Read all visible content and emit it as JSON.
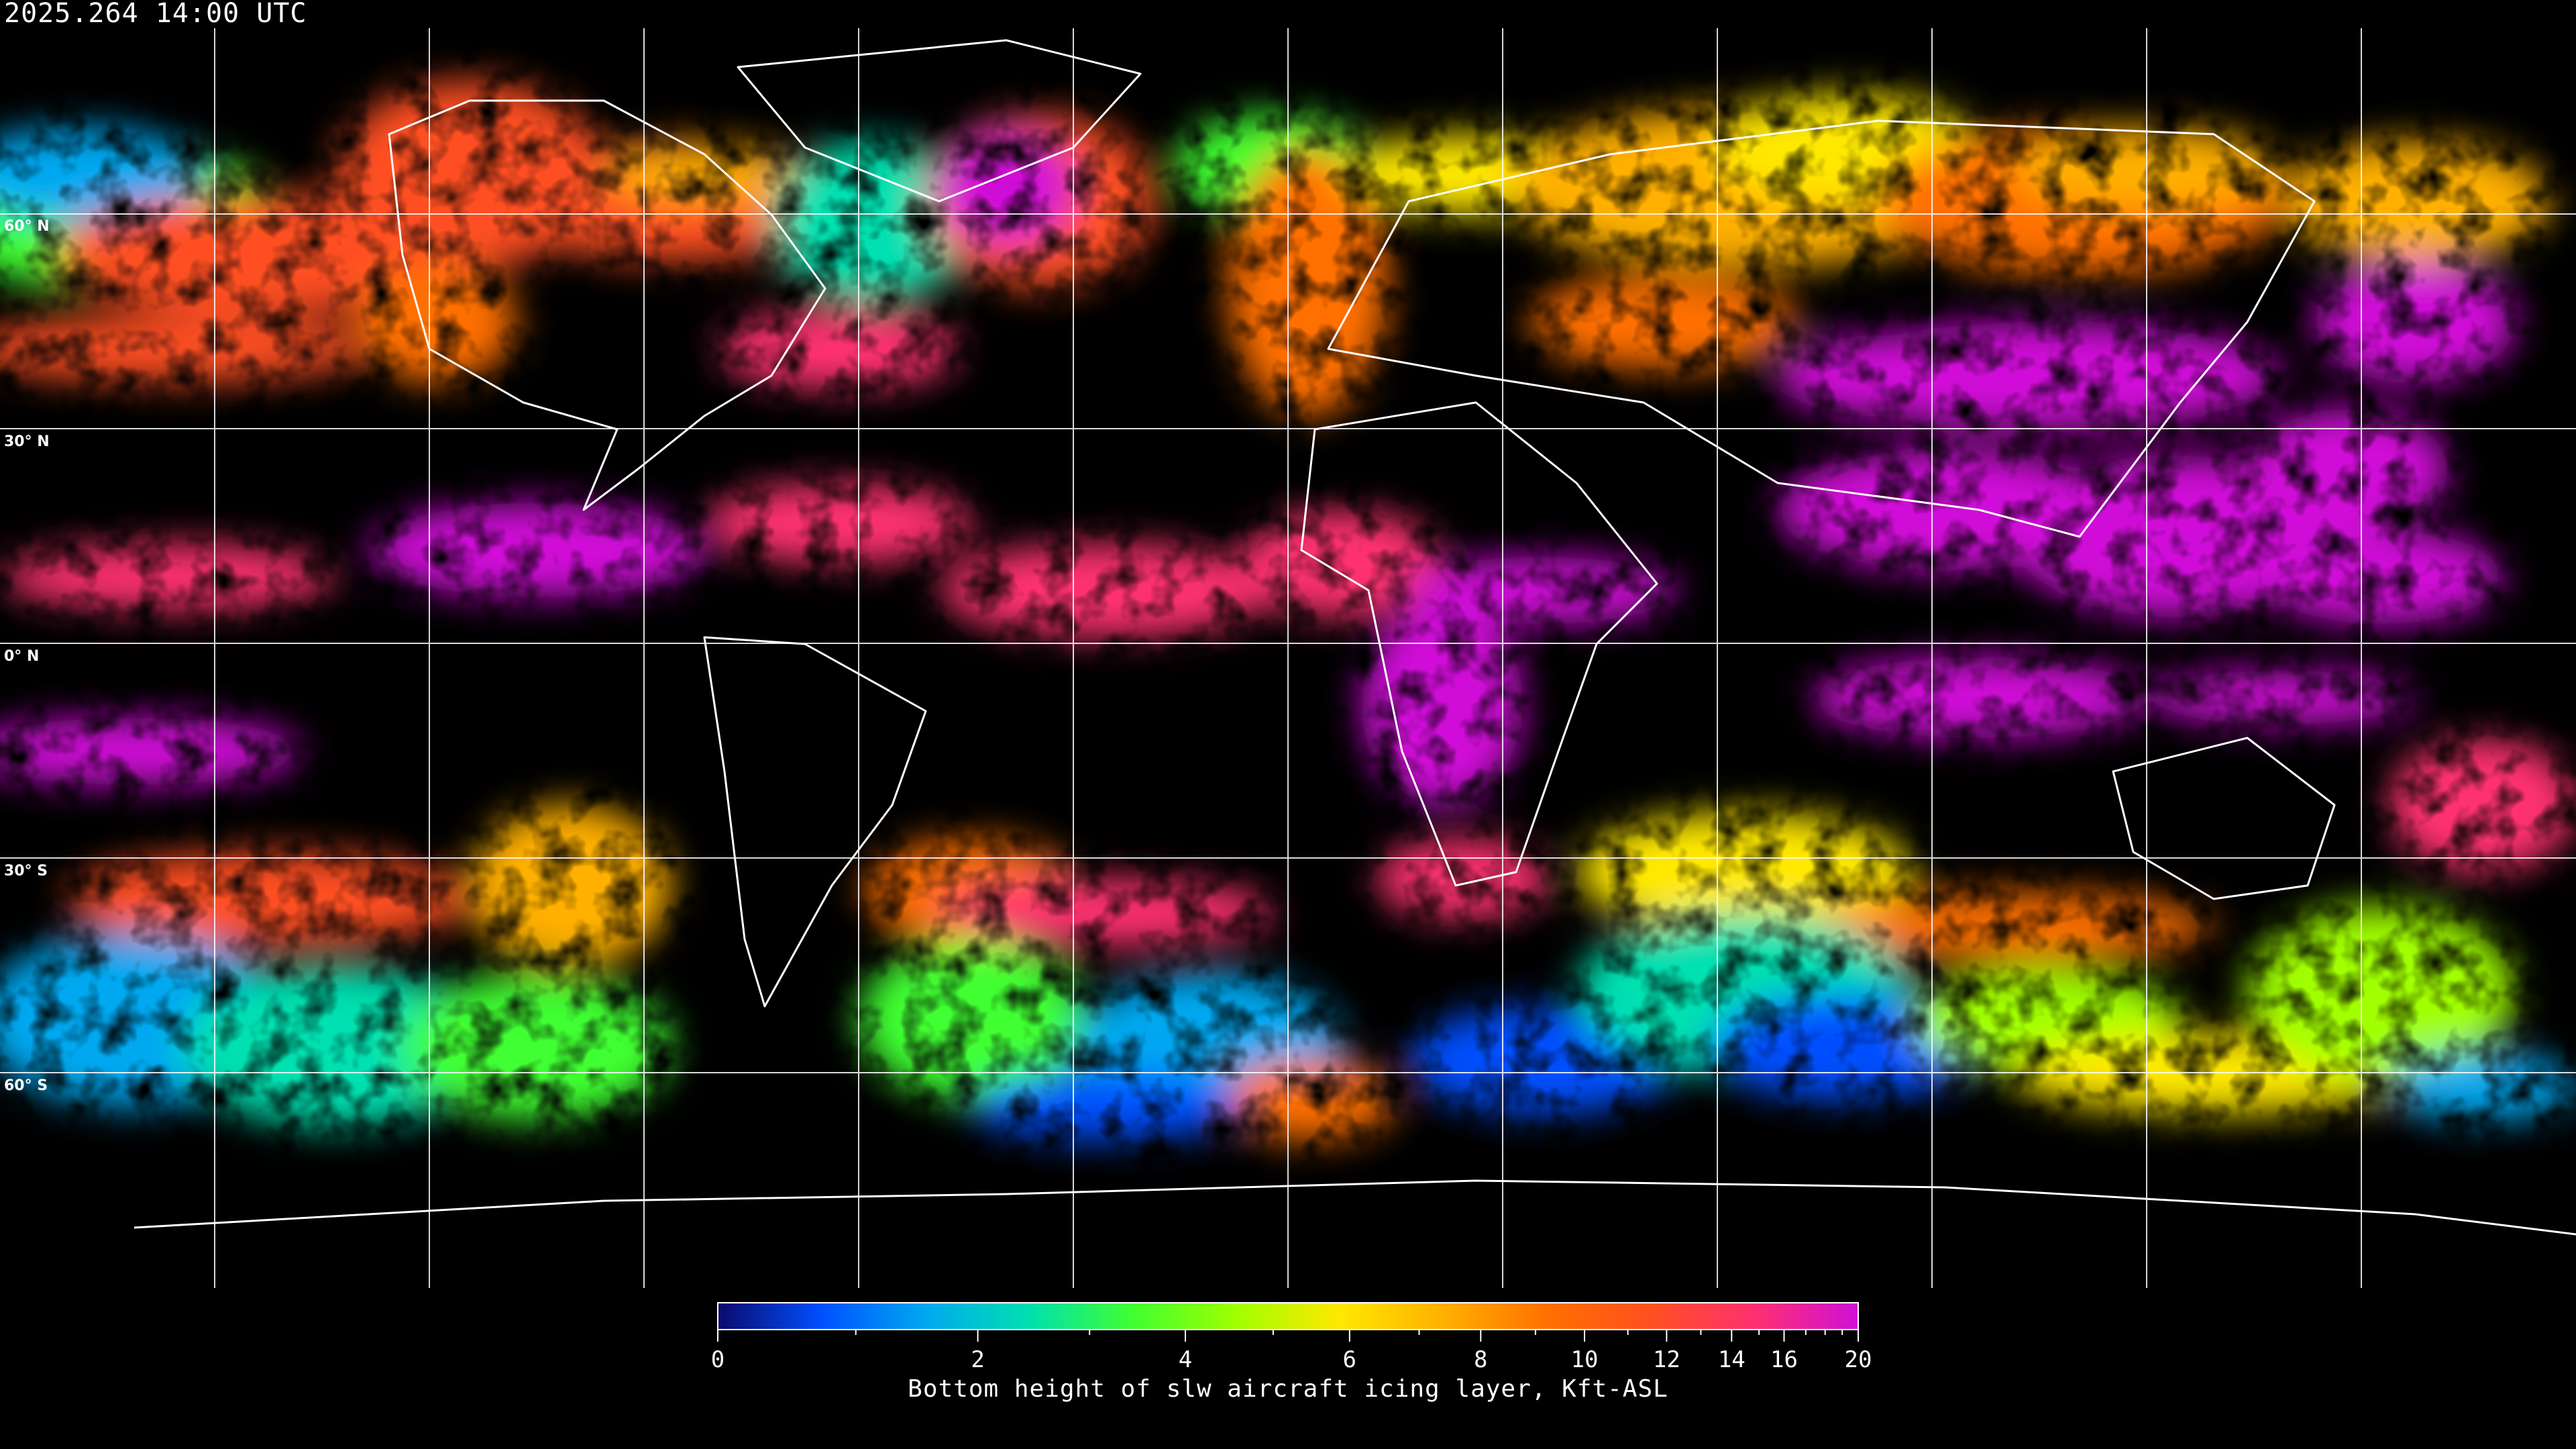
{
  "header": {
    "timestamp": "2025.264 14:00 UTC"
  },
  "map": {
    "projection": "equirectangular",
    "grid_spacing_deg": 30,
    "lat_labels": [
      "60° N",
      "30° N",
      "0° N",
      "30° S",
      "60° S"
    ],
    "background_color": "#000000",
    "coastline_color": "#ffffff"
  },
  "colorbar": {
    "title": "Bottom height of slw aircraft icing layer, Kft-ASL",
    "min": 0,
    "max": 20,
    "major_ticks": [
      "0",
      "2",
      "4",
      "6",
      "8",
      "10",
      "12",
      "14",
      "16",
      "20"
    ],
    "minor_ticks": [
      1,
      3,
      5,
      7,
      9,
      11,
      13,
      15,
      17,
      18,
      19
    ],
    "colors": [
      "#0a0a6e",
      "#0050ff",
      "#00a8f0",
      "#00e0b0",
      "#40ff30",
      "#a0ff00",
      "#ffe800",
      "#ffb000",
      "#ff7000",
      "#ff5020",
      "#ff3070",
      "#d010d8"
    ]
  }
}
